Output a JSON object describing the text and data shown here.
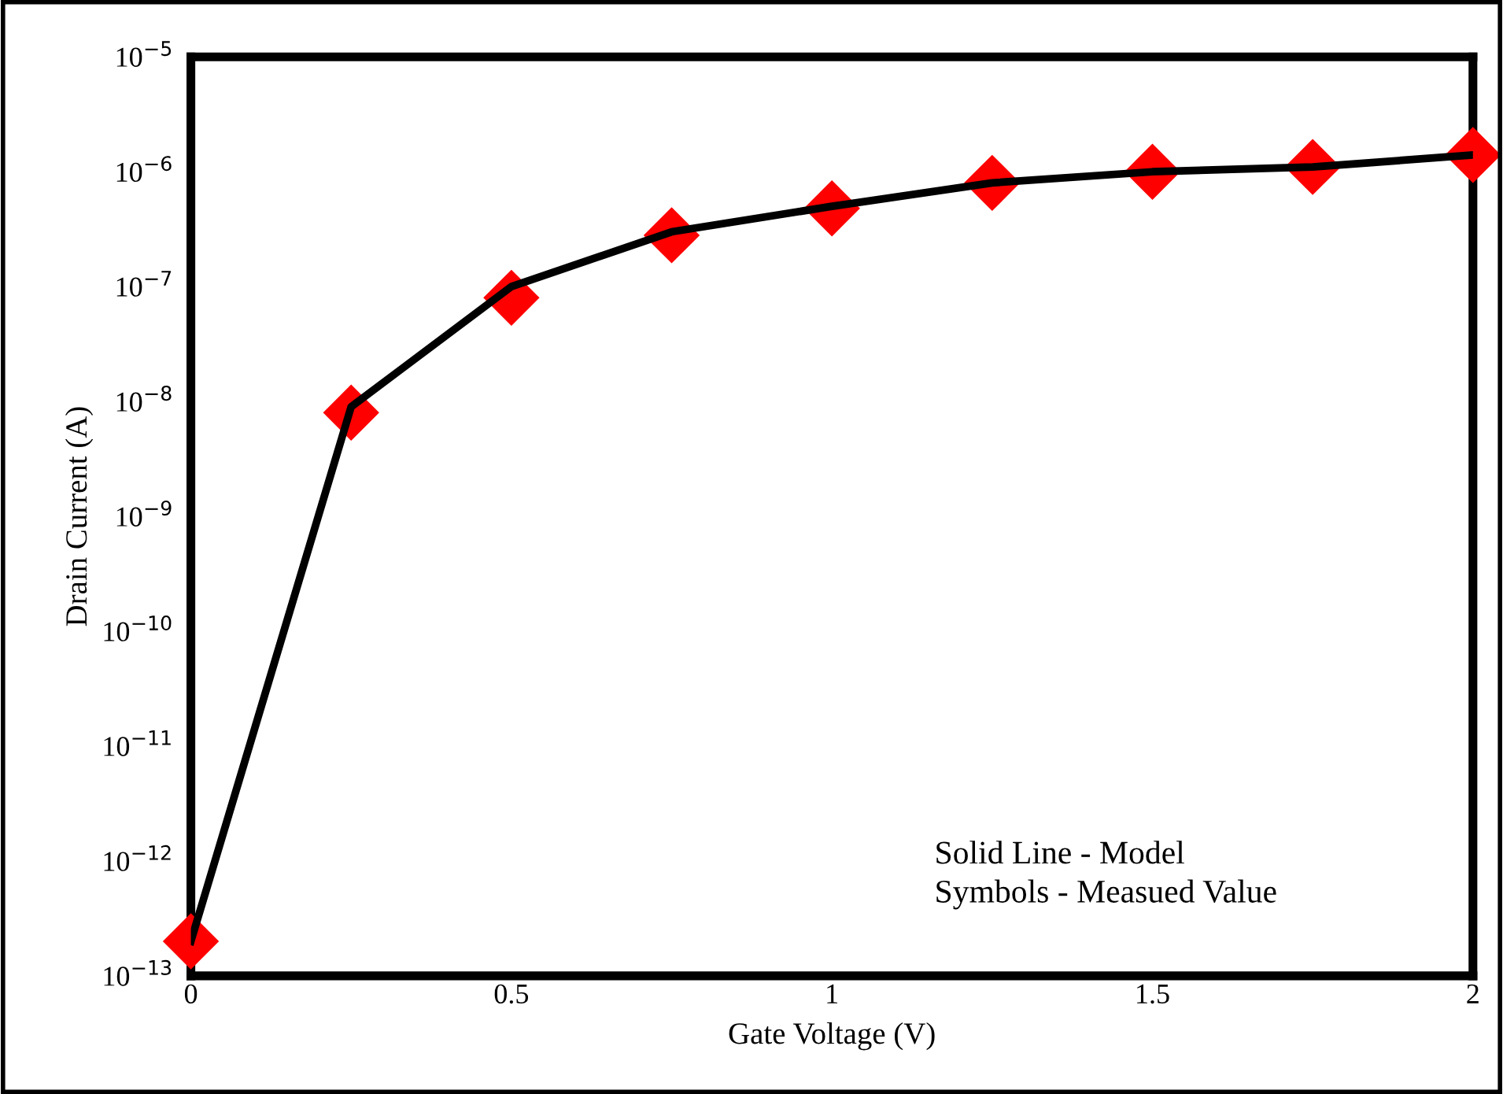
{
  "chart_data": {
    "type": "line",
    "xlabel": "Gate Voltage (V)",
    "ylabel": "Drain Current (A)",
    "x": [
      0,
      0.25,
      0.5,
      0.75,
      1,
      1.25,
      1.5,
      1.75,
      2
    ],
    "series": [
      {
        "color": "#000000",
        "marker": "none",
        "line_style": "solid",
        "values": [
          2e-13,
          9e-09,
          1e-07,
          3e-07,
          5e-07,
          8e-07,
          1e-06,
          1.1e-06,
          1.4e-06
        ]
      },
      {
        "type": "scatter",
        "color": "#ff0000",
        "marker": "diamond",
        "values": [
          2e-13,
          8e-09,
          8e-08,
          2.8e-07,
          4.8e-07,
          8e-07,
          1e-06,
          1.1e-06,
          1.4e-06
        ]
      }
    ],
    "log": "y",
    "xlim": [
      0,
      2
    ],
    "ylim": [
      1e-13,
      1e-05
    ],
    "xticks": [
      0,
      0.5,
      1,
      1.5,
      2
    ],
    "yticks": [
      {
        "value": 1e-13,
        "label": "10$^{−13}$"
      },
      {
        "value": 1e-12,
        "label": "10$^{−12}$"
      },
      {
        "value": 1e-11,
        "label": "10$^{−11}$"
      },
      {
        "value": 1e-10,
        "label": "10$^{−10}$"
      },
      {
        "value": 1e-09,
        "label": "10$^{−9}$"
      },
      {
        "value": 1e-08,
        "label": "10$^{−8}$"
      },
      {
        "value": 1e-07,
        "label": "10$^{−7}$"
      },
      {
        "value": 1e-06,
        "label": "10$^{−6}$"
      },
      {
        "value": 1e-05,
        "label": "10$^{−5}$"
      }
    ],
    "grid": false,
    "annotations": [
      "Solid Line - Model\nSymbols - Measued Value"
    ]
  }
}
